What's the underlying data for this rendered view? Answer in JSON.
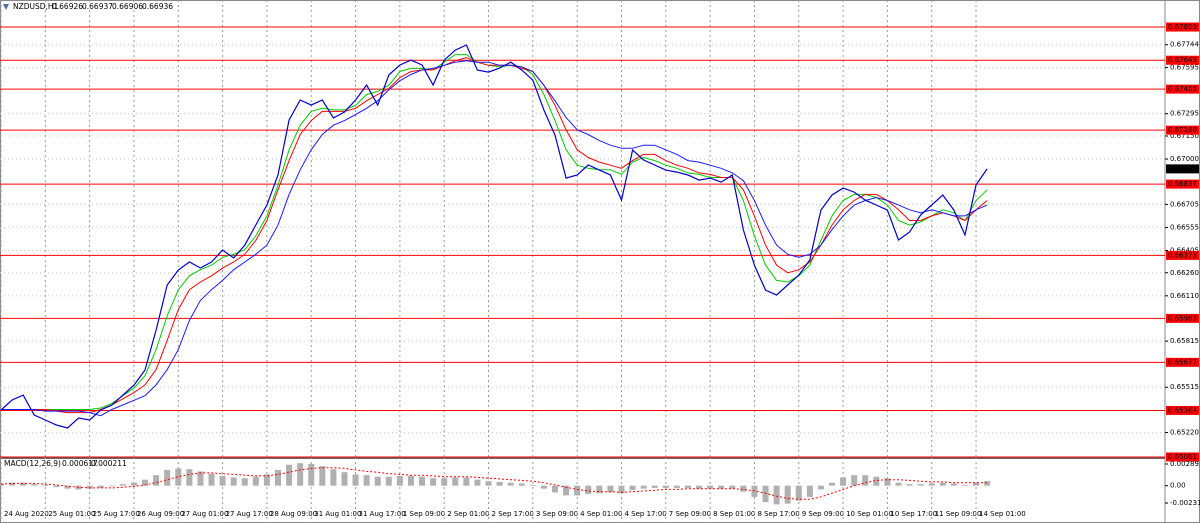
{
  "chart_data": [
    {
      "type": "line",
      "title": "NZDUSD,H1",
      "ohlc_header": [
        0.66926,
        0.66937,
        0.66906,
        0.66936
      ],
      "categories": [
        "24 Aug 2020",
        null,
        null,
        null,
        "25 Aug 01:00",
        null,
        null,
        null,
        "25 Aug 17:00",
        null,
        null,
        null,
        "26 Aug 09:00",
        null,
        null,
        null,
        "27 Aug 01:00",
        null,
        null,
        null,
        "27 Aug 17:00",
        null,
        null,
        null,
        "28 Aug 09:00",
        null,
        null,
        null,
        "31 Aug 01:00",
        null,
        null,
        null,
        "31 Aug 17:00",
        null,
        null,
        null,
        "1 Sep 09:00",
        null,
        null,
        null,
        "2 Sep 01:00",
        null,
        null,
        null,
        "2 Sep 17:00",
        null,
        null,
        null,
        "3 Sep 09:00",
        null,
        null,
        null,
        "4 Sep 01:00",
        null,
        null,
        null,
        "4 Sep 17:00",
        null,
        null,
        null,
        "7 Sep 09:00",
        null,
        null,
        null,
        "8 Sep 01:00",
        null,
        null,
        null,
        "8 Sep 17:00",
        null,
        null,
        null,
        "9 Sep 09:00",
        null,
        null,
        null,
        "10 Sep 01:00",
        null,
        null,
        null,
        "10 Sep 17:00",
        null,
        null,
        null,
        "11 Sep 09:00",
        null,
        null,
        null,
        "14 Sep 01:00",
        null
      ],
      "series": [
        {
          "color": "#0000cc",
          "values": [
            0.65367,
            0.65432,
            0.65464,
            0.65334,
            0.65302,
            0.65269,
            0.6525,
            0.65315,
            0.65302,
            0.65367,
            0.65399,
            0.65464,
            0.65529,
            0.65627,
            0.65887,
            0.6618,
            0.66278,
            0.6633,
            0.66291,
            0.6633,
            0.66408,
            0.66356,
            0.6644,
            0.66571,
            0.66701,
            0.66896,
            0.67254,
            0.67384,
            0.67351,
            0.67384,
            0.67267,
            0.67306,
            0.67384,
            0.67482,
            0.67351,
            0.67547,
            0.67612,
            0.67644,
            0.67612,
            0.67482,
            0.67644,
            0.67709,
            0.67742,
            0.67579,
            0.67566,
            0.67592,
            0.67631,
            0.67579,
            0.67514,
            0.67319,
            0.67156,
            0.66876,
            0.66896,
            0.66961,
            0.66928,
            0.66896,
            0.66733,
            0.67059,
            0.66994,
            0.66961,
            0.66928,
            0.66915,
            0.66896,
            0.66863,
            0.66876,
            0.6685,
            0.66896,
            0.66538,
            0.6631,
            0.66148,
            0.66115,
            0.6618,
            0.66245,
            0.66343,
            0.66668,
            0.66766,
            0.66811,
            0.66785,
            0.66733,
            0.66701,
            0.66668,
            0.66473,
            0.66525,
            0.66636,
            0.66701,
            0.66766,
            0.66668,
            0.66506,
            0.66831,
            0.66936
          ]
        },
        {
          "color": "#1a1aff",
          "values": [
            0.6537,
            0.6537,
            0.6537,
            0.6537,
            0.6536,
            0.6536,
            0.6536,
            0.6536,
            0.6535,
            0.6533,
            0.6537,
            0.654,
            0.6543,
            0.6546,
            0.6553,
            0.6563,
            0.6576,
            0.6595,
            0.6608,
            0.6615,
            0.6621,
            0.6628,
            0.6633,
            0.6638,
            0.6644,
            0.6657,
            0.6677,
            0.6693,
            0.6706,
            0.6716,
            0.6722,
            0.6725,
            0.6729,
            0.6733,
            0.6738,
            0.6745,
            0.6751,
            0.6755,
            0.6758,
            0.6759,
            0.6761,
            0.6763,
            0.6764,
            0.6763,
            0.6763,
            0.6761,
            0.6761,
            0.676,
            0.6757,
            0.6748,
            0.6738,
            0.6727,
            0.6719,
            0.6716,
            0.6712,
            0.6709,
            0.6707,
            0.6707,
            0.6709,
            0.6709,
            0.6706,
            0.6703,
            0.6699,
            0.6698,
            0.6696,
            0.6694,
            0.6691,
            0.6686,
            0.6673,
            0.6657,
            0.6644,
            0.6638,
            0.6636,
            0.6638,
            0.6644,
            0.6654,
            0.6663,
            0.667,
            0.6673,
            0.6675,
            0.6673,
            0.667,
            0.6667,
            0.6665,
            0.6667,
            0.6665,
            0.6663,
            0.6663,
            0.6667,
            0.667
          ]
        },
        {
          "color": "#ff0000",
          "values": [
            0.6537,
            0.6537,
            0.6537,
            0.6537,
            0.6537,
            0.6536,
            0.6535,
            0.6535,
            0.6535,
            0.6537,
            0.654,
            0.6544,
            0.6548,
            0.6553,
            0.6563,
            0.6582,
            0.6602,
            0.6615,
            0.662,
            0.6624,
            0.6629,
            0.6633,
            0.6638,
            0.6647,
            0.666,
            0.668,
            0.6699,
            0.6716,
            0.6725,
            0.6731,
            0.6731,
            0.6731,
            0.6733,
            0.6738,
            0.6742,
            0.6746,
            0.6753,
            0.6757,
            0.6758,
            0.6758,
            0.6761,
            0.6764,
            0.6766,
            0.6763,
            0.6761,
            0.6761,
            0.6761,
            0.6759,
            0.6757,
            0.6748,
            0.6735,
            0.6719,
            0.6706,
            0.6701,
            0.6698,
            0.6696,
            0.6694,
            0.6699,
            0.6703,
            0.6703,
            0.6699,
            0.6696,
            0.6694,
            0.6691,
            0.669,
            0.6688,
            0.6688,
            0.668,
            0.6663,
            0.6644,
            0.6631,
            0.6626,
            0.6628,
            0.6633,
            0.6644,
            0.6657,
            0.6667,
            0.6673,
            0.6677,
            0.6677,
            0.6673,
            0.6667,
            0.666,
            0.666,
            0.6663,
            0.6665,
            0.6663,
            0.666,
            0.6667,
            0.6673
          ]
        },
        {
          "color": "#00cc00",
          "values": [
            0.6537,
            0.6537,
            0.6537,
            0.6537,
            0.6537,
            0.6537,
            0.6537,
            0.6537,
            0.6537,
            0.6538,
            0.6541,
            0.6546,
            0.6551,
            0.6559,
            0.6576,
            0.6598,
            0.6615,
            0.6624,
            0.6628,
            0.6631,
            0.6636,
            0.6638,
            0.6641,
            0.665,
            0.6663,
            0.6683,
            0.6706,
            0.6722,
            0.6731,
            0.6733,
            0.6732,
            0.6732,
            0.6735,
            0.6742,
            0.6744,
            0.6748,
            0.6757,
            0.6759,
            0.6759,
            0.6758,
            0.6763,
            0.6768,
            0.6768,
            0.6763,
            0.6761,
            0.676,
            0.6761,
            0.676,
            0.6755,
            0.6742,
            0.6725,
            0.6706,
            0.6696,
            0.6694,
            0.6693,
            0.6693,
            0.669,
            0.6698,
            0.6701,
            0.6699,
            0.6696,
            0.6694,
            0.6691,
            0.669,
            0.6688,
            0.6688,
            0.6688,
            0.6673,
            0.665,
            0.6631,
            0.6621,
            0.662,
            0.6624,
            0.6631,
            0.6647,
            0.6663,
            0.6673,
            0.6677,
            0.6677,
            0.6675,
            0.667,
            0.666,
            0.6657,
            0.6659,
            0.6663,
            0.6667,
            0.6665,
            0.666,
            0.6673,
            0.668
          ]
        }
      ],
      "ylim": [
        0.65061,
        0.68035
      ],
      "yticks": [
        0.67744,
        0.67595,
        0.67295,
        {
          "value": 0.6715,
          "label": "0.67150"
        },
        {
          "value": 0.67,
          "label": "0.67000"
        },
        0.66705,
        0.66555,
        0.66405,
        {
          "value": 0.6626,
          "label": "0.66260"
        },
        {
          "value": 0.6611,
          "label": "0.66110"
        },
        0.65815,
        0.65515,
        {
          "value": 0.6522,
          "label": "0.65220"
        }
      ],
      "levels": {
        "color": "#ff0000",
        "values": [
          0.67859,
          0.67643,
          0.67455,
          0.67188,
          0.66837,
          0.66373,
          0.65963,
          0.65677,
          0.65364,
          0.65061
        ]
      },
      "current": 0.66936,
      "grid": true
    },
    {
      "type": "macd",
      "title": "MACD(12,26,9)",
      "header_values": [
        0.000617,
        0.000211
      ],
      "histogram": {
        "color": "#b0b0b0",
        "values": [
          0.0003,
          0.0004,
          0.0004,
          0.0002,
          0.0001,
          -0.0002,
          -0.0004,
          -0.0005,
          -0.0004,
          -0.0003,
          -0.0001,
          0.0002,
          0.0004,
          0.0008,
          0.0014,
          0.0021,
          0.0023,
          0.0022,
          0.0019,
          0.0016,
          0.0013,
          0.0011,
          0.001,
          0.0012,
          0.0015,
          0.0021,
          0.0028,
          0.003,
          0.0029,
          0.0026,
          0.0022,
          0.0018,
          0.0015,
          0.0014,
          0.0012,
          0.0012,
          0.0013,
          0.0013,
          0.0012,
          0.001,
          0.001,
          0.0011,
          0.0011,
          0.0008,
          0.0006,
          0.0005,
          0.0004,
          0.0003,
          0.0001,
          -0.0004,
          -0.0009,
          -0.0013,
          -0.0013,
          -0.0011,
          -0.001,
          -0.0009,
          -0.001,
          -0.0006,
          -0.0004,
          -0.0003,
          -0.0003,
          -0.0003,
          -0.0003,
          -0.0004,
          -0.0004,
          -0.0004,
          -0.0004,
          -0.0008,
          -0.0015,
          -0.0022,
          -0.0025,
          -0.0024,
          -0.002,
          -0.0015,
          -0.0005,
          0.0004,
          0.0011,
          0.0014,
          0.0014,
          0.0012,
          0.001,
          0.0004,
          0.0002,
          0.0002,
          0.0003,
          0.0004,
          0.0003,
          0.0001,
          0.0004,
          0.0006
        ]
      },
      "signal": {
        "color": "#ff0000",
        "values": [
          0.0002,
          0.0003,
          0.0003,
          0.0003,
          0.0002,
          0.0001,
          -0.0001,
          -0.0002,
          -0.0003,
          -0.0003,
          -0.0003,
          -0.0002,
          -0.0001,
          0.0001,
          0.0004,
          0.0008,
          0.0012,
          0.0015,
          0.0017,
          0.0017,
          0.0016,
          0.0015,
          0.0014,
          0.0013,
          0.0013,
          0.0015,
          0.0018,
          0.0021,
          0.0023,
          0.0024,
          0.0024,
          0.0023,
          0.0021,
          0.0019,
          0.0018,
          0.0016,
          0.0015,
          0.0014,
          0.0014,
          0.0013,
          0.0012,
          0.0012,
          0.0012,
          0.0011,
          0.001,
          0.0009,
          0.0008,
          0.0007,
          0.0006,
          0.0004,
          0.0001,
          -0.0002,
          -0.0005,
          -0.0007,
          -0.0008,
          -0.0008,
          -0.0009,
          -0.0008,
          -0.0007,
          -0.0006,
          -0.0005,
          -0.0005,
          -0.0004,
          -0.0004,
          -0.0004,
          -0.0004,
          -0.0004,
          -0.0005,
          -0.0007,
          -0.001,
          -0.0014,
          -0.0017,
          -0.0018,
          -0.0018,
          -0.0015,
          -0.001,
          -0.0005,
          0,
          0.0004,
          0.0007,
          0.0008,
          0.0008,
          0.0007,
          0.0006,
          0.0005,
          0.0005,
          0.0004,
          0.0004,
          0.0004,
          0.0004
        ]
      },
      "ylim": [
        -0.004712,
        0.003425
      ],
      "yticks": [
        0.002891,
        {
          "value": 0,
          "label": "0.00"
        },
        -0.002315
      ]
    }
  ]
}
